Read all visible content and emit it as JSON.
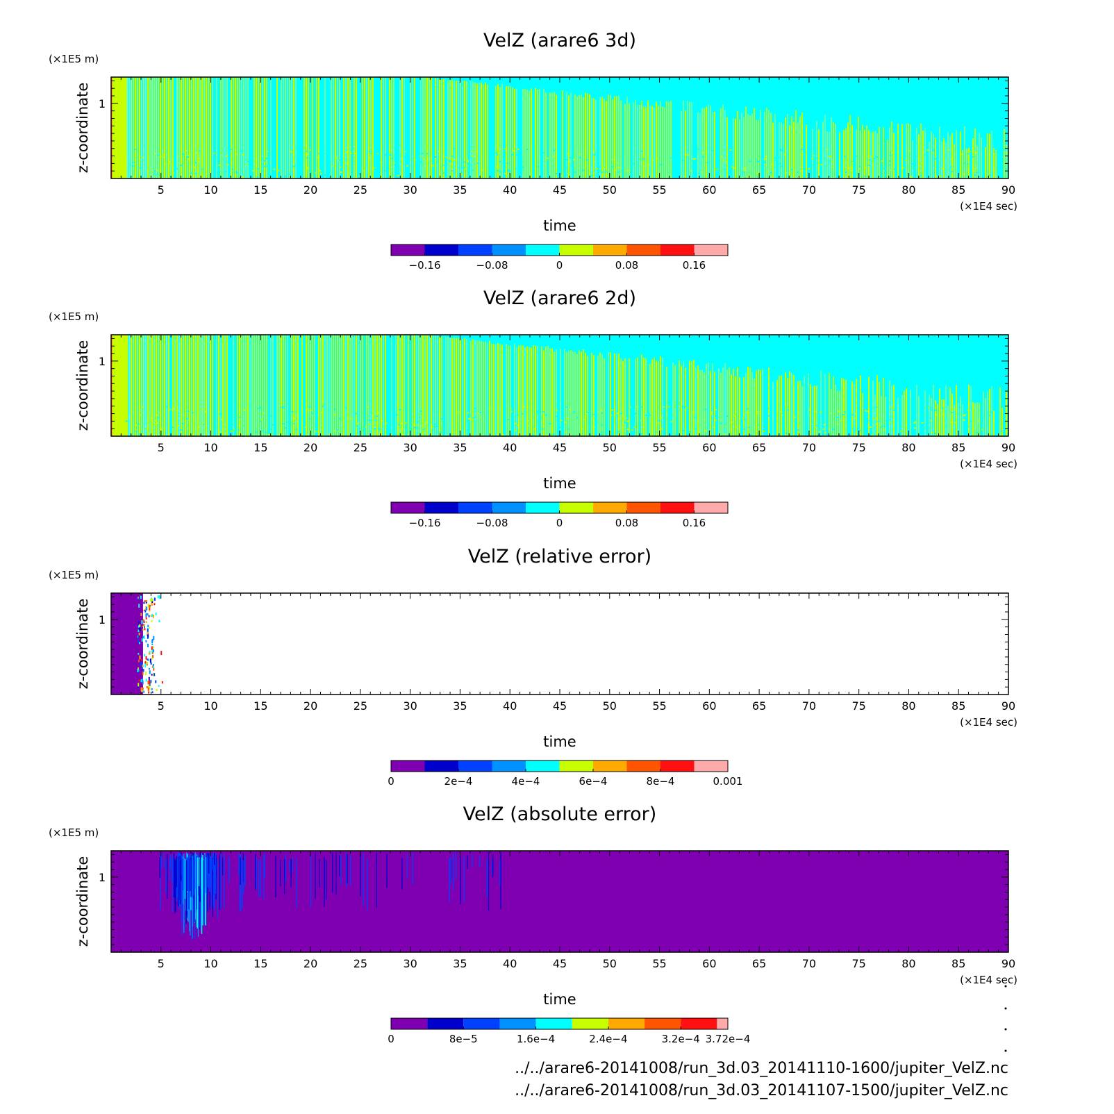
{
  "chart_data": [
    {
      "type": "heatmap",
      "id": "p1",
      "title": "VelZ (arare6 3d)",
      "xlabel": "time",
      "x_unit": "(×1E4 sec)",
      "ylabel": "z-coordinate",
      "y_unit": "(×1E5 m)",
      "xlim": [
        0,
        90
      ],
      "ylim": [
        0,
        1.35
      ],
      "xticks": [
        5,
        10,
        15,
        20,
        25,
        30,
        35,
        40,
        45,
        50,
        55,
        60,
        65,
        70,
        75,
        80,
        85,
        90
      ],
      "yticks": [
        1
      ],
      "pattern": "cyan-yellow-green vertical streaks; upper region becomes uniform cyan after ~45",
      "colorbar": {
        "range": [
          -0.2,
          0.2
        ],
        "colors": [
          "#7f00b0",
          "#0000cc",
          "#0040ff",
          "#0090ff",
          "#00ffff",
          "#c8ff00",
          "#ffaa00",
          "#ff5500",
          "#ff1010",
          "#ffaaaa"
        ],
        "ticks": [
          -0.16,
          -0.08,
          0,
          0.08,
          0.16
        ],
        "tick_labels": [
          "−0.16",
          "−0.08",
          "0",
          "0.08",
          "0.16"
        ]
      }
    },
    {
      "type": "heatmap",
      "id": "p2",
      "title": "VelZ (arare6 2d)",
      "xlabel": "time",
      "x_unit": "(×1E4 sec)",
      "ylabel": "z-coordinate",
      "y_unit": "(×1E5 m)",
      "xlim": [
        0,
        90
      ],
      "ylim": [
        0,
        1.35
      ],
      "xticks": [
        5,
        10,
        15,
        20,
        25,
        30,
        35,
        40,
        45,
        50,
        55,
        60,
        65,
        70,
        75,
        80,
        85,
        90
      ],
      "yticks": [
        1
      ],
      "pattern": "cyan-yellow-green vertical streaks; upper region becomes uniform cyan after ~45",
      "colorbar": {
        "range": [
          -0.2,
          0.2
        ],
        "colors": [
          "#7f00b0",
          "#0000cc",
          "#0040ff",
          "#0090ff",
          "#00ffff",
          "#c8ff00",
          "#ffaa00",
          "#ff5500",
          "#ff1010",
          "#ffaaaa"
        ],
        "ticks": [
          -0.16,
          -0.08,
          0,
          0.08,
          0.16
        ],
        "tick_labels": [
          "−0.16",
          "−0.08",
          "0",
          "0.08",
          "0.16"
        ]
      }
    },
    {
      "type": "heatmap",
      "id": "p3",
      "title": "VelZ (relative error)",
      "xlabel": "time",
      "x_unit": "(×1E4 sec)",
      "ylabel": "z-coordinate",
      "y_unit": "(×1E5 m)",
      "xlim": [
        0,
        90
      ],
      "ylim": [
        0,
        1.35
      ],
      "xticks": [
        5,
        10,
        15,
        20,
        25,
        30,
        35,
        40,
        45,
        50,
        55,
        60,
        65,
        70,
        75,
        80,
        85,
        90
      ],
      "yticks": [
        1
      ],
      "pattern": "purple (near 0) for time 0 to ~3.3, a few scattered colored cells near 3-5, blank (white) elsewhere",
      "colorbar": {
        "range": [
          0,
          0.001
        ],
        "colors": [
          "#7f00b0",
          "#0000cc",
          "#0040ff",
          "#0090ff",
          "#00ffff",
          "#c8ff00",
          "#ffaa00",
          "#ff5500",
          "#ff1010",
          "#ffaaaa"
        ],
        "ticks": [
          0,
          0.0002,
          0.0004,
          0.0006,
          0.0008,
          0.001
        ],
        "tick_labels": [
          "0",
          "2e−4",
          "4e−4",
          "6e−4",
          "8e−4",
          "0.001"
        ]
      }
    },
    {
      "type": "heatmap",
      "id": "p4",
      "title": "VelZ (absolute error)",
      "xlabel": "time",
      "x_unit": "(×1E4 sec)",
      "ylabel": "z-coordinate",
      "y_unit": "(×1E5 m)",
      "xlim": [
        0,
        90
      ],
      "ylim": [
        0,
        1.35
      ],
      "xticks": [
        5,
        10,
        15,
        20,
        25,
        30,
        35,
        40,
        45,
        50,
        55,
        60,
        65,
        70,
        75,
        80,
        85,
        90
      ],
      "yticks": [
        1
      ],
      "pattern": "uniform purple background with blue/cyan vertical streaks between time ~5 and ~40, strongest near 7-10",
      "colorbar": {
        "range": [
          0,
          0.000372
        ],
        "colors": [
          "#7f00b0",
          "#0000cc",
          "#0040ff",
          "#0090ff",
          "#00ffff",
          "#c8ff00",
          "#ffaa00",
          "#ff5500",
          "#ff1010",
          "#ffaaaa"
        ],
        "ticks": [
          0,
          8e-05,
          0.00016,
          0.00024,
          0.00032,
          0.000372
        ],
        "tick_labels": [
          "0",
          "8e−5",
          "1.6e−4",
          "2.4e−4",
          "3.2e−4",
          "3.72e−4"
        ]
      }
    }
  ],
  "footer": {
    "line1": "../../arare6-20141008/run_3d.03_20141110-1600/jupiter_VelZ.nc",
    "line2": "../../arare6-20141008/run_3d.03_20141107-1500/jupiter_VelZ.nc"
  }
}
